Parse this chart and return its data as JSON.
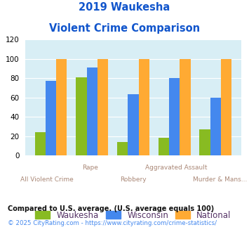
{
  "title_line1": "2019 Waukesha",
  "title_line2": "Violent Crime Comparison",
  "categories": [
    "All Violent Crime",
    "Rape",
    "Robbery",
    "Aggravated Assault",
    "Murder & Mans..."
  ],
  "waukesha": [
    24,
    81,
    14,
    18,
    27
  ],
  "wisconsin": [
    77,
    91,
    63,
    80,
    60
  ],
  "national": [
    100,
    100,
    100,
    100,
    100
  ],
  "color_waukesha": "#88bb22",
  "color_wisconsin": "#4488ee",
  "color_national": "#ffaa33",
  "ylim": [
    0,
    120
  ],
  "yticks": [
    0,
    20,
    40,
    60,
    80,
    100,
    120
  ],
  "xlabel_top_pos": [
    1,
    3
  ],
  "xlabel_bottom_pos": [
    0,
    2,
    4
  ],
  "bg_color": "#d8eef5",
  "title_color": "#1155cc",
  "xlabel_color": "#aa8877",
  "legend_label_color": "#553366",
  "footnote1": "Compared to U.S. average. (U.S. average equals 100)",
  "footnote2": "© 2025 CityRating.com - https://www.cityrating.com/crime-statistics/",
  "footnote1_color": "#111111",
  "footnote2_color": "#4488ee"
}
